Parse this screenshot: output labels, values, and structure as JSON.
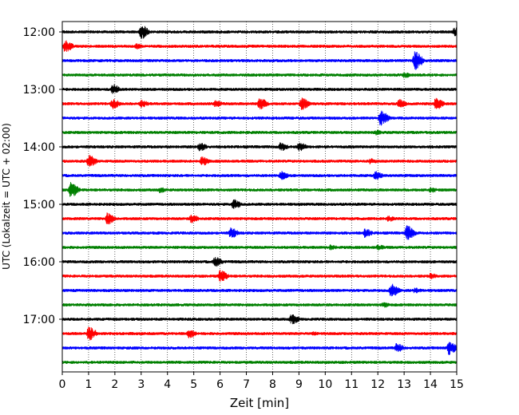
{
  "chart_data": {
    "type": "line",
    "title": "",
    "xlabel": "Zeit  [min]",
    "ylabel": "UTC (Lokalzeit = UTC + 02:00)",
    "xlim": [
      0,
      15
    ],
    "x_ticks": [
      0,
      1,
      2,
      3,
      4,
      5,
      6,
      7,
      8,
      9,
      10,
      11,
      12,
      13,
      14,
      15
    ],
    "y_ticks": [
      "12:00",
      "13:00",
      "14:00",
      "15:00",
      "16:00",
      "17:00"
    ],
    "grid": "vertical dotted lines at each minute",
    "colors": [
      "#000000",
      "#ff0000",
      "#0000ff",
      "#008000"
    ],
    "traces": [
      {
        "start": "12:00",
        "color": "#000000",
        "events": [
          [
            3.0,
            9
          ],
          [
            14.9,
            6
          ]
        ]
      },
      {
        "start": "12:15",
        "color": "#ff0000",
        "events": [
          [
            0.1,
            8
          ],
          [
            2.8,
            4
          ]
        ]
      },
      {
        "start": "12:30",
        "color": "#0000ff",
        "events": [
          [
            13.4,
            12
          ]
        ]
      },
      {
        "start": "12:45",
        "color": "#008000",
        "events": [
          [
            13.0,
            4
          ]
        ]
      },
      {
        "start": "13:00",
        "color": "#000000",
        "events": [
          [
            1.9,
            7
          ],
          [
            5.6,
            2
          ]
        ]
      },
      {
        "start": "13:15",
        "color": "#ff0000",
        "events": [
          [
            1.9,
            7
          ],
          [
            3.0,
            5
          ],
          [
            5.8,
            5
          ],
          [
            7.5,
            8
          ],
          [
            9.1,
            8
          ],
          [
            12.8,
            6
          ],
          [
            14.2,
            8
          ]
        ]
      },
      {
        "start": "13:30",
        "color": "#0000ff",
        "events": [
          [
            12.1,
            10
          ]
        ]
      },
      {
        "start": "13:45",
        "color": "#008000",
        "events": [
          [
            11.9,
            4
          ]
        ]
      },
      {
        "start": "14:00",
        "color": "#000000",
        "events": [
          [
            5.2,
            6
          ],
          [
            8.3,
            6
          ],
          [
            9.0,
            6
          ]
        ]
      },
      {
        "start": "14:15",
        "color": "#ff0000",
        "events": [
          [
            1.0,
            8
          ],
          [
            5.3,
            6
          ],
          [
            11.7,
            4
          ]
        ]
      },
      {
        "start": "14:30",
        "color": "#0000ff",
        "events": [
          [
            8.3,
            6
          ],
          [
            11.9,
            6
          ]
        ]
      },
      {
        "start": "14:45",
        "color": "#008000",
        "events": [
          [
            0.3,
            10
          ],
          [
            3.7,
            4
          ],
          [
            14.0,
            4
          ]
        ]
      },
      {
        "start": "15:00",
        "color": "#000000",
        "events": [
          [
            6.5,
            7
          ]
        ]
      },
      {
        "start": "15:15",
        "color": "#ff0000",
        "events": [
          [
            1.7,
            8
          ],
          [
            4.9,
            6
          ],
          [
            12.4,
            4
          ]
        ]
      },
      {
        "start": "15:30",
        "color": "#0000ff",
        "events": [
          [
            6.4,
            7
          ],
          [
            11.5,
            6
          ],
          [
            13.1,
            10
          ]
        ]
      },
      {
        "start": "15:45",
        "color": "#008000",
        "events": [
          [
            10.2,
            4
          ],
          [
            12.0,
            4
          ]
        ]
      },
      {
        "start": "16:00",
        "color": "#000000",
        "events": [
          [
            5.8,
            7
          ]
        ]
      },
      {
        "start": "16:15",
        "color": "#ff0000",
        "events": [
          [
            6.0,
            8
          ],
          [
            14.0,
            4
          ]
        ]
      },
      {
        "start": "16:30",
        "color": "#0000ff",
        "events": [
          [
            12.5,
            9
          ],
          [
            13.4,
            4
          ]
        ]
      },
      {
        "start": "16:45",
        "color": "#008000",
        "events": [
          [
            12.2,
            4
          ]
        ]
      },
      {
        "start": "17:00",
        "color": "#000000",
        "events": [
          [
            8.7,
            7
          ]
        ]
      },
      {
        "start": "17:15",
        "color": "#ff0000",
        "events": [
          [
            1.0,
            9
          ],
          [
            4.8,
            6
          ],
          [
            9.5,
            3
          ]
        ]
      },
      {
        "start": "17:30",
        "color": "#0000ff",
        "events": [
          [
            12.7,
            6
          ],
          [
            14.7,
            9
          ]
        ]
      },
      {
        "start": "17:45",
        "color": "#008000",
        "events": []
      }
    ]
  }
}
